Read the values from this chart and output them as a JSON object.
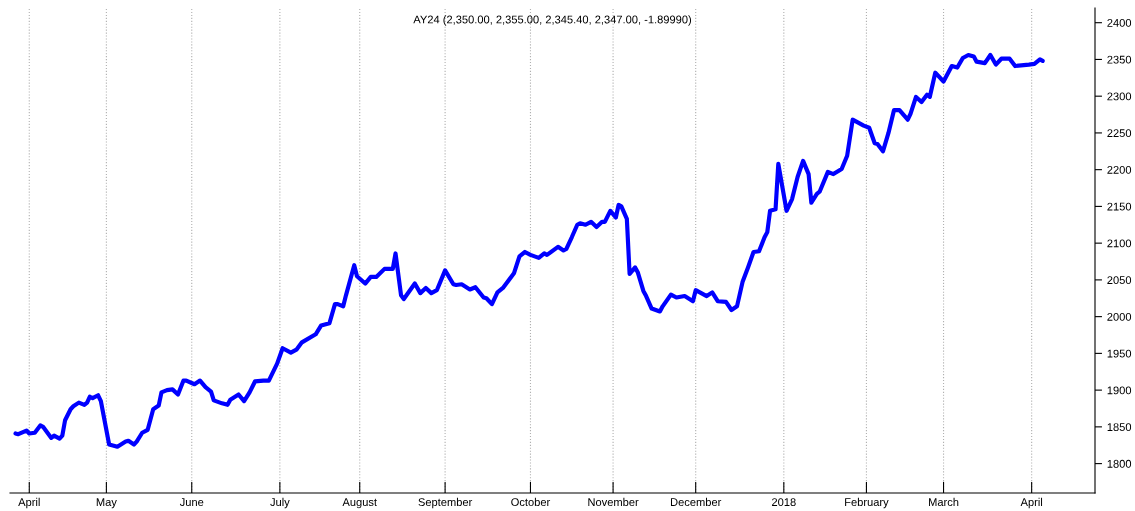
{
  "chart_data": {
    "type": "line",
    "title": "AY24 (2,350.00, 2,355.00, 2,345.40, 2,347.00, -1.89990)",
    "x": [
      "2017-03-29",
      "2017-03-30",
      "2017-04-02",
      "2017-04-03",
      "2017-04-05",
      "2017-04-07",
      "2017-04-08",
      "2017-04-11",
      "2017-04-12",
      "2017-04-14",
      "2017-04-15",
      "2017-04-16",
      "2017-04-18",
      "2017-04-19",
      "2017-04-21",
      "2017-04-23",
      "2017-04-24",
      "2017-04-25",
      "2017-04-26",
      "2017-04-28",
      "2017-04-29",
      "2017-05-02",
      "2017-05-03",
      "2017-05-05",
      "2017-05-08",
      "2017-05-09",
      "2017-05-11",
      "2017-05-12",
      "2017-05-14",
      "2017-05-16",
      "2017-05-18",
      "2017-05-20",
      "2017-05-21",
      "2017-05-23",
      "2017-05-25",
      "2017-05-27",
      "2017-05-29",
      "2017-05-30",
      "2017-06-02",
      "2017-06-04",
      "2017-06-06",
      "2017-06-08",
      "2017-06-09",
      "2017-06-12",
      "2017-06-14",
      "2017-06-15",
      "2017-06-18",
      "2017-06-20",
      "2017-06-22",
      "2017-06-24",
      "2017-06-27",
      "2017-06-29",
      "2017-07-02",
      "2017-07-04",
      "2017-07-07",
      "2017-07-09",
      "2017-07-11",
      "2017-07-16",
      "2017-07-18",
      "2017-07-21",
      "2017-07-23",
      "2017-07-24",
      "2017-07-26",
      "2017-07-27",
      "2017-07-30",
      "2017-07-31",
      "2017-08-03",
      "2017-08-05",
      "2017-08-07",
      "2017-08-10",
      "2017-08-13",
      "2017-08-14",
      "2017-08-16",
      "2017-08-17",
      "2017-08-21",
      "2017-08-23",
      "2017-08-25",
      "2017-08-27",
      "2017-08-29",
      "2017-09-01",
      "2017-09-04",
      "2017-09-05",
      "2017-09-07",
      "2017-09-10",
      "2017-09-12",
      "2017-09-15",
      "2017-09-16",
      "2017-09-18",
      "2017-09-20",
      "2017-09-22",
      "2017-09-26",
      "2017-09-28",
      "2017-09-30",
      "2017-10-02",
      "2017-10-05",
      "2017-10-07",
      "2017-10-08",
      "2017-10-12",
      "2017-10-14",
      "2017-10-15",
      "2017-10-17",
      "2017-10-19",
      "2017-10-20",
      "2017-10-22",
      "2017-10-24",
      "2017-10-26",
      "2017-10-28",
      "2017-10-29",
      "2017-10-31",
      "2017-11-02",
      "2017-11-03",
      "2017-11-04",
      "2017-11-06",
      "2017-11-07",
      "2017-11-09",
      "2017-11-10",
      "2017-11-12",
      "2017-11-13",
      "2017-11-15",
      "2017-11-18",
      "2017-11-19",
      "2017-11-22",
      "2017-11-24",
      "2017-11-27",
      "2017-11-30",
      "2017-12-01",
      "2017-12-05",
      "2017-12-07",
      "2017-12-09",
      "2017-12-12",
      "2017-12-14",
      "2017-12-16",
      "2017-12-18",
      "2017-12-20",
      "2017-12-22",
      "2017-12-24",
      "2017-12-26",
      "2017-12-27",
      "2017-12-28",
      "2017-12-30",
      "2017-12-31",
      "2018-01-03",
      "2018-01-05",
      "2018-01-07",
      "2018-01-09",
      "2018-01-11",
      "2018-01-12",
      "2018-01-14",
      "2018-01-15",
      "2018-01-18",
      "2018-01-20",
      "2018-01-23",
      "2018-01-25",
      "2018-01-27",
      "2018-01-31",
      "2018-02-02",
      "2018-02-04",
      "2018-02-05",
      "2018-02-07",
      "2018-02-09",
      "2018-02-11",
      "2018-02-13",
      "2018-02-16",
      "2018-02-17",
      "2018-02-19",
      "2018-02-21",
      "2018-02-23",
      "2018-02-24",
      "2018-02-26",
      "2018-03-01",
      "2018-03-04",
      "2018-03-06",
      "2018-03-08",
      "2018-03-10",
      "2018-03-12",
      "2018-03-13",
      "2018-03-16",
      "2018-03-18",
      "2018-03-20",
      "2018-03-22",
      "2018-03-25",
      "2018-03-27",
      "2018-04-01",
      "2018-04-03",
      "2018-04-05",
      "2018-04-06"
    ],
    "series": [
      {
        "color": "#0000ff",
        "values": [
          1841,
          1840,
          1845,
          1841,
          1842,
          1852,
          1850,
          1835,
          1838,
          1834,
          1838,
          1859,
          1874,
          1878,
          1883,
          1880,
          1883,
          1891,
          1889,
          1893,
          1885,
          1826,
          1825,
          1823,
          1830,
          1831,
          1826,
          1830,
          1842,
          1846,
          1874,
          1879,
          1897,
          1900,
          1901,
          1894,
          1913,
          1913,
          1908,
          1913,
          1904,
          1898,
          1886,
          1882,
          1880,
          1887,
          1894,
          1885,
          1897,
          1912,
          1913,
          1913,
          1936,
          1957,
          1951,
          1955,
          1965,
          1976,
          1988,
          1991,
          2017,
          2017,
          2014,
          2029,
          2070,
          2055,
          2045,
          2054,
          2054,
          2065,
          2065,
          2086,
          2029,
          2024,
          2045,
          2032,
          2039,
          2032,
          2036,
          2063,
          2044,
          2043,
          2044,
          2037,
          2040,
          2026,
          2025,
          2017,
          2033,
          2039,
          2059,
          2082,
          2088,
          2084,
          2080,
          2086,
          2084,
          2095,
          2090,
          2092,
          2108,
          2125,
          2127,
          2125,
          2129,
          2122,
          2129,
          2129,
          2144,
          2135,
          2152,
          2150,
          2133,
          2058,
          2067,
          2060,
          2035,
          2028,
          2011,
          2007,
          2014,
          2030,
          2026,
          2028,
          2021,
          2036,
          2028,
          2033,
          2021,
          2020,
          2009,
          2014,
          2047,
          2067,
          2088,
          2089,
          2108,
          2115,
          2144,
          2146,
          2208,
          2144,
          2160,
          2190,
          2212,
          2194,
          2155,
          2167,
          2170,
          2197,
          2194,
          2201,
          2219,
          2268,
          2260,
          2257,
          2236,
          2235,
          2225,
          2250,
          2281,
          2281,
          2268,
          2276,
          2299,
          2292,
          2302,
          2299,
          2332,
          2320,
          2341,
          2339,
          2352,
          2356,
          2354,
          2347,
          2345,
          2356,
          2343,
          2351,
          2351,
          2341,
          2343,
          2344,
          2350,
          2348
        ]
      }
    ],
    "xlim": [
      "2017-03-27",
      "2018-04-25"
    ],
    "xticks": [
      {
        "value": "2017-04-03",
        "label": "April"
      },
      {
        "value": "2017-05-01",
        "label": "May"
      },
      {
        "value": "2017-06-01",
        "label": "June"
      },
      {
        "value": "2017-07-03",
        "label": "July"
      },
      {
        "value": "2017-08-01",
        "label": "August"
      },
      {
        "value": "2017-09-01",
        "label": "September"
      },
      {
        "value": "2017-10-02",
        "label": "October"
      },
      {
        "value": "2017-11-01",
        "label": "November"
      },
      {
        "value": "2017-12-01",
        "label": "December"
      },
      {
        "value": "2018-01-02",
        "label": "2018"
      },
      {
        "value": "2018-02-01",
        "label": "February"
      },
      {
        "value": "2018-03-01",
        "label": "March"
      },
      {
        "value": "2018-04-02",
        "label": "April"
      }
    ],
    "ylim": [
      1760,
      2420
    ],
    "yticks": [
      1800,
      1850,
      1900,
      1950,
      2000,
      2050,
      2100,
      2150,
      2200,
      2250,
      2300,
      2350,
      2400
    ],
    "grid": "x",
    "marker": "none",
    "line_style": "solid"
  }
}
